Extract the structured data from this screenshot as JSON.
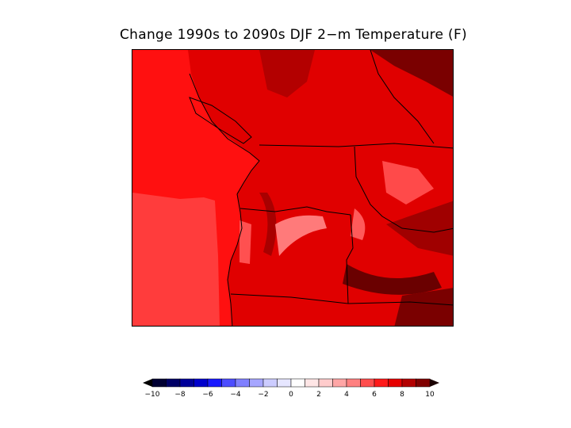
{
  "title": "Change 1990s to 2090s DJF 2−m Temperature (F)",
  "colorbar": {
    "ticks": [
      {
        "value": -10,
        "label": "−10"
      },
      {
        "value": -8,
        "label": "−8"
      },
      {
        "value": -6,
        "label": "−6"
      },
      {
        "value": -4,
        "label": "−4"
      },
      {
        "value": -2,
        "label": "−2"
      },
      {
        "value": 0,
        "label": "0"
      },
      {
        "value": 2,
        "label": "2"
      },
      {
        "value": 4,
        "label": "4"
      },
      {
        "value": 6,
        "label": "6"
      },
      {
        "value": 8,
        "label": "8"
      },
      {
        "value": 10,
        "label": "10"
      }
    ],
    "range": [
      -10,
      10
    ],
    "step": 1,
    "colors": {
      "below_min": "#000000",
      "above_max": "#1a0000",
      "levels": [
        "#000033",
        "#000066",
        "#000099",
        "#0000cc",
        "#1a1aff",
        "#4d4dff",
        "#8080ff",
        "#a6a6ff",
        "#ccccff",
        "#e6e6ff",
        "#ffffff",
        "#ffe6e6",
        "#ffcccc",
        "#ffa6a6",
        "#ff8080",
        "#ff4d4d",
        "#ff1a1a",
        "#e60000",
        "#b30000",
        "#800000"
      ]
    }
  },
  "map": {
    "region": "Pacific Northwest",
    "colors": {
      "ocean_far": "#ff3c3c",
      "ocean_coastal": "#ff1010",
      "land_base": "#e00000",
      "land_dark": "#a80000",
      "land_darkest": "#5a0000",
      "land_light": "#ff4040",
      "land_lightest": "#ff7a7a",
      "boundary": "#000000"
    }
  }
}
